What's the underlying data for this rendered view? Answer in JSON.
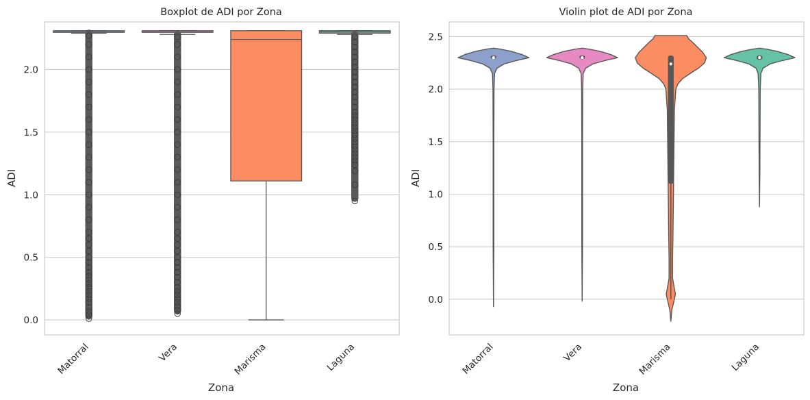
{
  "chart_data": [
    {
      "type": "box",
      "title": "Boxplot de ADI por Zona",
      "xlabel": "Zona",
      "ylabel": "ADI",
      "categories": [
        "Matorral",
        "Vera",
        "Marisma",
        "Laguna"
      ],
      "ylim": [
        -0.12,
        2.38
      ],
      "yticks": [
        0.0,
        0.5,
        1.0,
        1.5,
        2.0
      ],
      "ytick_labels": [
        "0.0",
        "0.5",
        "1.0",
        "1.5",
        "2.0"
      ],
      "grid": true,
      "series": [
        {
          "category": "Matorral",
          "color": "#8da0cb",
          "whisker_low": 2.29,
          "q1": 2.3,
          "median": 2.3,
          "q3": 2.31,
          "whisker_high": 2.31,
          "outliers": [
            0.01,
            0.04,
            0.07,
            0.1,
            0.14,
            0.17,
            0.2,
            0.23,
            0.26,
            0.29,
            0.32,
            0.35,
            0.38,
            0.42,
            0.46,
            0.5,
            0.55,
            0.6,
            0.65,
            0.7,
            0.8,
            0.9,
            1.0,
            1.1,
            1.2,
            1.3,
            1.4,
            1.5,
            1.6,
            1.7,
            1.8,
            1.9,
            2.0,
            2.1,
            2.2,
            2.27
          ]
        },
        {
          "category": "Vera",
          "color": "#e78ac3",
          "whisker_low": 2.28,
          "q1": 2.3,
          "median": 2.3,
          "q3": 2.31,
          "whisker_high": 2.31,
          "outliers": [
            0.05,
            0.08,
            0.11,
            0.14,
            0.17,
            0.2,
            0.23,
            0.26,
            0.3,
            0.34,
            0.38,
            0.42,
            0.46,
            0.5,
            0.55,
            0.6,
            0.65,
            0.7,
            0.8,
            0.9,
            1.0,
            1.1,
            1.2,
            1.3,
            1.4,
            1.5,
            1.6,
            1.7,
            1.8,
            1.9,
            2.0,
            2.1,
            2.2,
            2.26
          ]
        },
        {
          "category": "Marisma",
          "color": "#fc8d62",
          "whisker_low": 0.0,
          "q1": 1.11,
          "median": 2.24,
          "q3": 2.31,
          "whisker_high": 2.31,
          "outliers": []
        },
        {
          "category": "Laguna",
          "color": "#66c2a5",
          "whisker_low": 2.28,
          "q1": 2.29,
          "median": 2.3,
          "q3": 2.31,
          "whisker_high": 2.31,
          "outliers": [
            0.95,
            1.08,
            1.19,
            1.24,
            1.27,
            1.3,
            1.33,
            1.36,
            1.39,
            1.42,
            1.45,
            1.48,
            1.51,
            1.54,
            1.57,
            1.6,
            1.63,
            1.66,
            1.7,
            1.74,
            1.78,
            1.82,
            1.86,
            1.9,
            1.94,
            1.98,
            2.02,
            2.06,
            2.1,
            2.14,
            2.18,
            2.22,
            2.26
          ]
        }
      ]
    },
    {
      "type": "violin",
      "title": "Violin plot de ADI por Zona",
      "xlabel": "Zona",
      "ylabel": "ADI",
      "categories": [
        "Matorral",
        "Vera",
        "Marisma",
        "Laguna"
      ],
      "ylim": [
        -0.34,
        2.64
      ],
      "yticks": [
        0.0,
        0.5,
        1.0,
        1.5,
        2.0,
        2.5
      ],
      "ytick_labels": [
        "0.0",
        "0.5",
        "1.0",
        "1.5",
        "2.0",
        "2.5"
      ],
      "grid": true,
      "series": [
        {
          "category": "Matorral",
          "color": "#8da0cb",
          "median": 2.3,
          "q1": 2.3,
          "q3": 2.31,
          "whisker_low": 2.29,
          "whisker_high": 2.31,
          "profile": [
            [
              -0.07,
              0.0
            ],
            [
              0.5,
              0.01
            ],
            [
              1.0,
              0.01
            ],
            [
              1.5,
              0.01
            ],
            [
              2.0,
              0.015
            ],
            [
              2.15,
              0.03
            ],
            [
              2.2,
              0.1
            ],
            [
              2.24,
              0.3
            ],
            [
              2.27,
              0.62
            ],
            [
              2.3,
              1.0
            ],
            [
              2.33,
              0.8
            ],
            [
              2.36,
              0.5
            ],
            [
              2.38,
              0.2
            ],
            [
              2.39,
              0.0
            ]
          ]
        },
        {
          "category": "Vera",
          "color": "#e78ac3",
          "median": 2.3,
          "q1": 2.3,
          "q3": 2.31,
          "whisker_low": 2.28,
          "whisker_high": 2.31,
          "profile": [
            [
              -0.02,
              0.0
            ],
            [
              0.5,
              0.01
            ],
            [
              1.0,
              0.01
            ],
            [
              1.5,
              0.01
            ],
            [
              2.0,
              0.015
            ],
            [
              2.15,
              0.03
            ],
            [
              2.2,
              0.1
            ],
            [
              2.24,
              0.3
            ],
            [
              2.27,
              0.62
            ],
            [
              2.3,
              1.0
            ],
            [
              2.33,
              0.8
            ],
            [
              2.36,
              0.5
            ],
            [
              2.38,
              0.2
            ],
            [
              2.39,
              0.0
            ]
          ]
        },
        {
          "category": "Marisma",
          "color": "#fc8d62",
          "median": 2.24,
          "q1": 1.11,
          "q3": 2.31,
          "whisker_low": 0.0,
          "whisker_high": 2.31,
          "profile": [
            [
              -0.21,
              0.0
            ],
            [
              -0.1,
              0.03
            ],
            [
              0.0,
              0.1
            ],
            [
              0.05,
              0.13
            ],
            [
              0.1,
              0.1
            ],
            [
              0.2,
              0.05
            ],
            [
              0.4,
              0.05
            ],
            [
              0.6,
              0.06
            ],
            [
              0.9,
              0.07
            ],
            [
              1.2,
              0.08
            ],
            [
              1.5,
              0.09
            ],
            [
              1.8,
              0.1
            ],
            [
              2.0,
              0.14
            ],
            [
              2.05,
              0.2
            ],
            [
              2.1,
              0.33
            ],
            [
              2.15,
              0.55
            ],
            [
              2.2,
              0.78
            ],
            [
              2.25,
              0.95
            ],
            [
              2.3,
              1.0
            ],
            [
              2.35,
              0.9
            ],
            [
              2.4,
              0.75
            ],
            [
              2.45,
              0.6
            ],
            [
              2.48,
              0.5
            ],
            [
              2.51,
              0.45
            ]
          ]
        },
        {
          "category": "Laguna",
          "color": "#66c2a5",
          "median": 2.3,
          "q1": 2.29,
          "q3": 2.31,
          "whisker_low": 2.28,
          "whisker_high": 2.31,
          "profile": [
            [
              0.88,
              0.0
            ],
            [
              1.2,
              0.01
            ],
            [
              1.6,
              0.015
            ],
            [
              2.0,
              0.02
            ],
            [
              2.15,
              0.04
            ],
            [
              2.2,
              0.1
            ],
            [
              2.24,
              0.3
            ],
            [
              2.27,
              0.62
            ],
            [
              2.3,
              1.0
            ],
            [
              2.33,
              0.8
            ],
            [
              2.36,
              0.5
            ],
            [
              2.38,
              0.2
            ],
            [
              2.39,
              0.0
            ]
          ]
        }
      ]
    }
  ]
}
